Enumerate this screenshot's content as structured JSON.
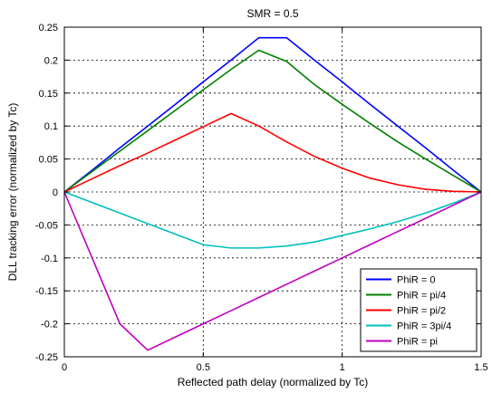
{
  "chart_data": {
    "type": "line",
    "title": "SMR = 0.5",
    "xlabel": "Reflected path delay (normalized by Tc)",
    "ylabel": "DLL tracking error (normalized by Tc)",
    "xlim": [
      0,
      1.5
    ],
    "ylim": [
      -0.25,
      0.25
    ],
    "xticks": [
      0,
      0.5,
      1,
      1.5
    ],
    "xtick_labels": [
      "0",
      "0.5",
      "1",
      "1.5"
    ],
    "yticks": [
      -0.25,
      -0.2,
      -0.15,
      -0.1,
      -0.05,
      0,
      0.05,
      0.1,
      0.15,
      0.2,
      0.25
    ],
    "ytick_labels": [
      "-0.25",
      "-0.2",
      "-0.15",
      "-0.1",
      "-0.05",
      "0",
      "0.05",
      "0.1",
      "0.15",
      "0.2",
      "0.25"
    ],
    "grid": true,
    "grid_style": "dotted",
    "legend_position": "bottom-right",
    "series": [
      {
        "name": "PhiR = 0",
        "color": "#0000ff",
        "x": [
          0,
          0.1,
          0.2,
          0.3,
          0.4,
          0.5,
          0.6,
          0.7,
          0.8,
          0.9,
          1.0,
          1.1,
          1.2,
          1.3,
          1.4,
          1.5
        ],
        "y": [
          0,
          0.033,
          0.067,
          0.1,
          0.133,
          0.167,
          0.2,
          0.234,
          0.234,
          0.2,
          0.167,
          0.133,
          0.1,
          0.067,
          0.033,
          0
        ]
      },
      {
        "name": "PhiR = pi/4",
        "color": "#008000",
        "x": [
          0,
          0.1,
          0.2,
          0.3,
          0.4,
          0.5,
          0.6,
          0.7,
          0.8,
          0.9,
          1.0,
          1.1,
          1.2,
          1.3,
          1.4,
          1.5
        ],
        "y": [
          0,
          0.031,
          0.062,
          0.093,
          0.124,
          0.155,
          0.186,
          0.215,
          0.198,
          0.163,
          0.133,
          0.104,
          0.076,
          0.05,
          0.025,
          0
        ]
      },
      {
        "name": "PhiR = pi/2",
        "color": "#ff0000",
        "x": [
          0,
          0.1,
          0.2,
          0.3,
          0.4,
          0.5,
          0.6,
          0.7,
          0.8,
          0.9,
          1.0,
          1.1,
          1.2,
          1.3,
          1.4,
          1.5
        ],
        "y": [
          0,
          0.02,
          0.04,
          0.059,
          0.079,
          0.099,
          0.119,
          0.1,
          0.076,
          0.054,
          0.036,
          0.021,
          0.011,
          0.004,
          0.001,
          0
        ]
      },
      {
        "name": "PhiR = 3pi/4",
        "color": "#00bfbf",
        "x": [
          0,
          0.1,
          0.2,
          0.3,
          0.4,
          0.5,
          0.6,
          0.7,
          0.8,
          0.9,
          1.0,
          1.1,
          1.2,
          1.3,
          1.4,
          1.5
        ],
        "y": [
          0,
          -0.016,
          -0.032,
          -0.048,
          -0.064,
          -0.08,
          -0.085,
          -0.085,
          -0.082,
          -0.076,
          -0.066,
          -0.056,
          -0.045,
          -0.032,
          -0.017,
          0
        ]
      },
      {
        "name": "PhiR = pi",
        "color": "#bf00bf",
        "x": [
          0,
          0.1,
          0.2,
          0.3,
          0.4,
          0.5,
          0.6,
          0.7,
          0.8,
          0.9,
          1.0,
          1.1,
          1.2,
          1.3,
          1.4,
          1.5
        ],
        "y": [
          0,
          -0.1,
          -0.2,
          -0.24,
          -0.22,
          -0.2,
          -0.18,
          -0.16,
          -0.14,
          -0.12,
          -0.1,
          -0.08,
          -0.06,
          -0.04,
          -0.02,
          0
        ]
      }
    ]
  }
}
